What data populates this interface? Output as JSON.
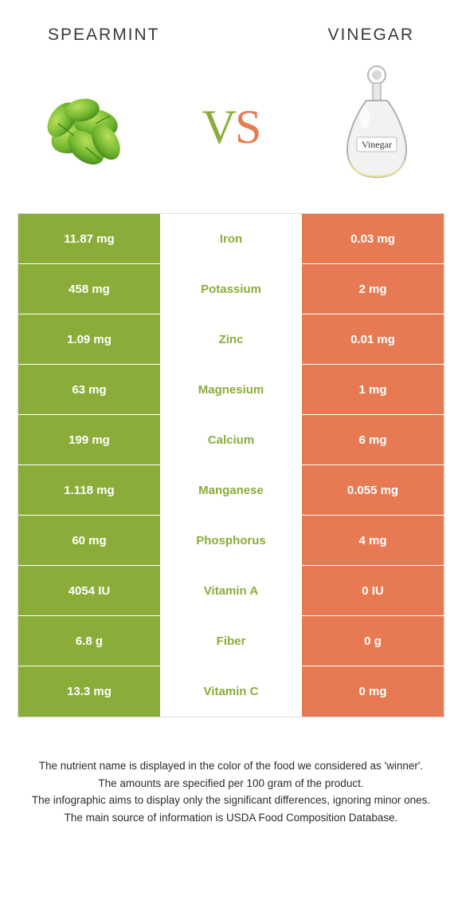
{
  "left_title": "Spearmint",
  "right_title": "Vinegar",
  "vs_v": "V",
  "vs_s": "S",
  "colors": {
    "left": "#8aad3a",
    "right": "#e77a52",
    "row_border": "#ffffff",
    "table_border": "#dedede",
    "text": "#3a3a3a"
  },
  "bottle_label": "Vinegar",
  "rows": [
    {
      "left": "11.87 mg",
      "mid": "Iron",
      "right": "0.03 mg",
      "mid_color": "#8aad3a"
    },
    {
      "left": "458 mg",
      "mid": "Potassium",
      "right": "2 mg",
      "mid_color": "#8aad3a"
    },
    {
      "left": "1.09 mg",
      "mid": "Zinc",
      "right": "0.01 mg",
      "mid_color": "#8aad3a"
    },
    {
      "left": "63 mg",
      "mid": "Magnesium",
      "right": "1 mg",
      "mid_color": "#8aad3a"
    },
    {
      "left": "199 mg",
      "mid": "Calcium",
      "right": "6 mg",
      "mid_color": "#8aad3a"
    },
    {
      "left": "1.118 mg",
      "mid": "Manganese",
      "right": "0.055 mg",
      "mid_color": "#8aad3a"
    },
    {
      "left": "60 mg",
      "mid": "Phosphorus",
      "right": "4 mg",
      "mid_color": "#8aad3a"
    },
    {
      "left": "4054 IU",
      "mid": "Vitamin A",
      "right": "0 IU",
      "mid_color": "#8aad3a"
    },
    {
      "left": "6.8 g",
      "mid": "Fiber",
      "right": "0 g",
      "mid_color": "#8aad3a"
    },
    {
      "left": "13.3 mg",
      "mid": "Vitamin C",
      "right": "0 mg",
      "mid_color": "#8aad3a"
    }
  ],
  "footer_lines": [
    "The nutrient name is displayed in the color of the food we considered as 'winner'.",
    "The amounts are specified per 100 gram of the product.",
    "The infographic aims to display only the significant differences, ignoring minor ones.",
    "The main source of information is USDA Food Composition Database."
  ]
}
